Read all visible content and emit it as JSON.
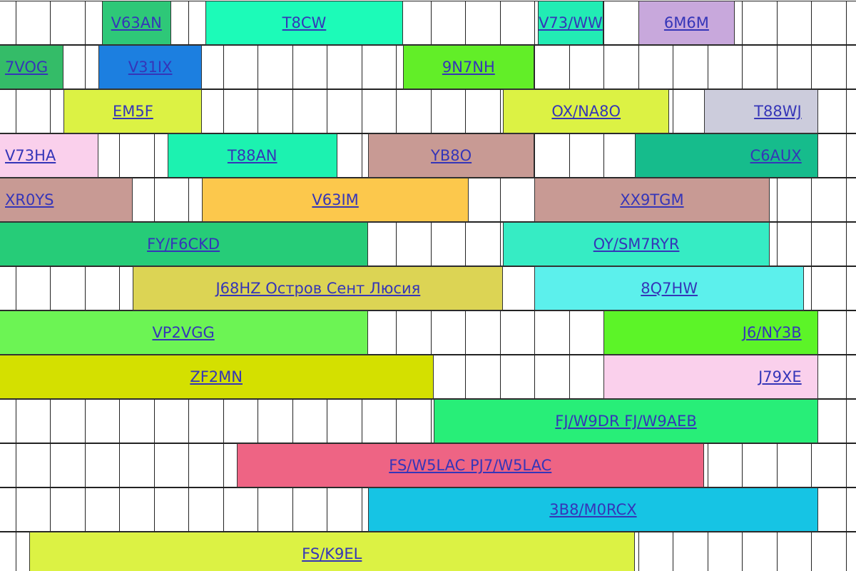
{
  "rows": [
    {
      "bars": [
        {
          "label": "V63AN",
          "color": "#2ec878",
          "start": 3.5,
          "end": 5.5
        },
        {
          "label": "T8CW",
          "color": "#1cfbb8",
          "start": 6.5,
          "end": 12.2
        },
        {
          "label": "V73/WW",
          "color": "#22ecb4",
          "start": 16.1,
          "end": 18.0
        },
        {
          "label": "6M6M",
          "color": "#c8a8dc",
          "start": 19.0,
          "end": 21.8
        }
      ]
    },
    {
      "bars": [
        {
          "label": "7VOG",
          "color": "#34bc68",
          "start": 0,
          "end": 2.4,
          "align": "l"
        },
        {
          "label": "V31IX",
          "color": "#1c7fe0",
          "start": 3.4,
          "end": 6.4
        },
        {
          "label": "9N7NH",
          "color": "#62ee28",
          "start": 12.2,
          "end": 16.0
        }
      ]
    },
    {
      "bars": [
        {
          "label": "EM5F",
          "color": "#dcf244",
          "start": 2.4,
          "end": 6.4
        },
        {
          "label": "OX/NA8O",
          "color": "#dcf244",
          "start": 15.1,
          "end": 19.9
        },
        {
          "label": "T88WJ",
          "color": "#ccccdc",
          "start": 20.9,
          "end": 24.2,
          "align": "r"
        }
      ]
    },
    {
      "bars": [
        {
          "label": "V73HA",
          "color": "#fad0ec",
          "start": 0,
          "end": 3.4,
          "align": "l"
        },
        {
          "label": "T88AN",
          "color": "#1cf2b0",
          "start": 5.4,
          "end": 10.3
        },
        {
          "label": "YB8O",
          "color": "#c89a94",
          "start": 11.2,
          "end": 16.0
        },
        {
          "label": "C6AUX",
          "color": "#16bc8c",
          "start": 18.9,
          "end": 24.2,
          "align": "r"
        }
      ]
    },
    {
      "bars": [
        {
          "label": "XR0YS",
          "color": "#c89a94",
          "start": 0,
          "end": 4.4,
          "align": "l"
        },
        {
          "label": "V63IM",
          "color": "#fcc84c",
          "start": 6.4,
          "end": 14.1
        },
        {
          "label": "XX9TGM",
          "color": "#c89a94",
          "start": 16.0,
          "end": 22.8
        }
      ]
    },
    {
      "bars": [
        {
          "label": "FY/F6CKD",
          "color": "#26cc78",
          "start": 0,
          "end": 11.2
        },
        {
          "label": "OY/SM7RYR",
          "color": "#36ecc4",
          "start": 15.1,
          "end": 22.8
        }
      ]
    },
    {
      "bars": [
        {
          "label": "J68HZ Остров Сент Люсия",
          "color": "#dcd454",
          "start": 4.4,
          "end": 15.1
        },
        {
          "label": "8Q7HW",
          "color": "#5cf0ec",
          "start": 16.0,
          "end": 23.8
        }
      ]
    },
    {
      "bars": [
        {
          "label": "VP2VGG",
          "color": "#6cf454",
          "start": 0,
          "end": 11.2
        },
        {
          "label": "J6/NY3B",
          "color": "#5cf428",
          "start": 18.0,
          "end": 24.2,
          "align": "r"
        }
      ]
    },
    {
      "bars": [
        {
          "label": "ZF2MN",
          "color": "#d4e000",
          "start": 0,
          "end": 13.1
        },
        {
          "label": "J79XE",
          "color": "#fad0ec",
          "start": 18.0,
          "end": 24.2,
          "align": "r"
        }
      ]
    },
    {
      "bars": [
        {
          "label": "FJ/W9DR FJ/W9AEB",
          "color": "#28ee78",
          "start": 13.1,
          "end": 24.2
        }
      ]
    },
    {
      "bars": [
        {
          "label": "FS/W5LAC PJ7/W5LAC",
          "color": "#ee6484",
          "start": 7.4,
          "end": 20.9
        }
      ]
    },
    {
      "bars": [
        {
          "label": "3B8/M0RCX",
          "color": "#16c4e4",
          "start": 11.2,
          "end": 24.2
        }
      ]
    },
    {
      "bars": [
        {
          "label": "FS/K9EL",
          "color": "#dcf244",
          "start": 1.4,
          "end": 18.9
        }
      ]
    }
  ]
}
